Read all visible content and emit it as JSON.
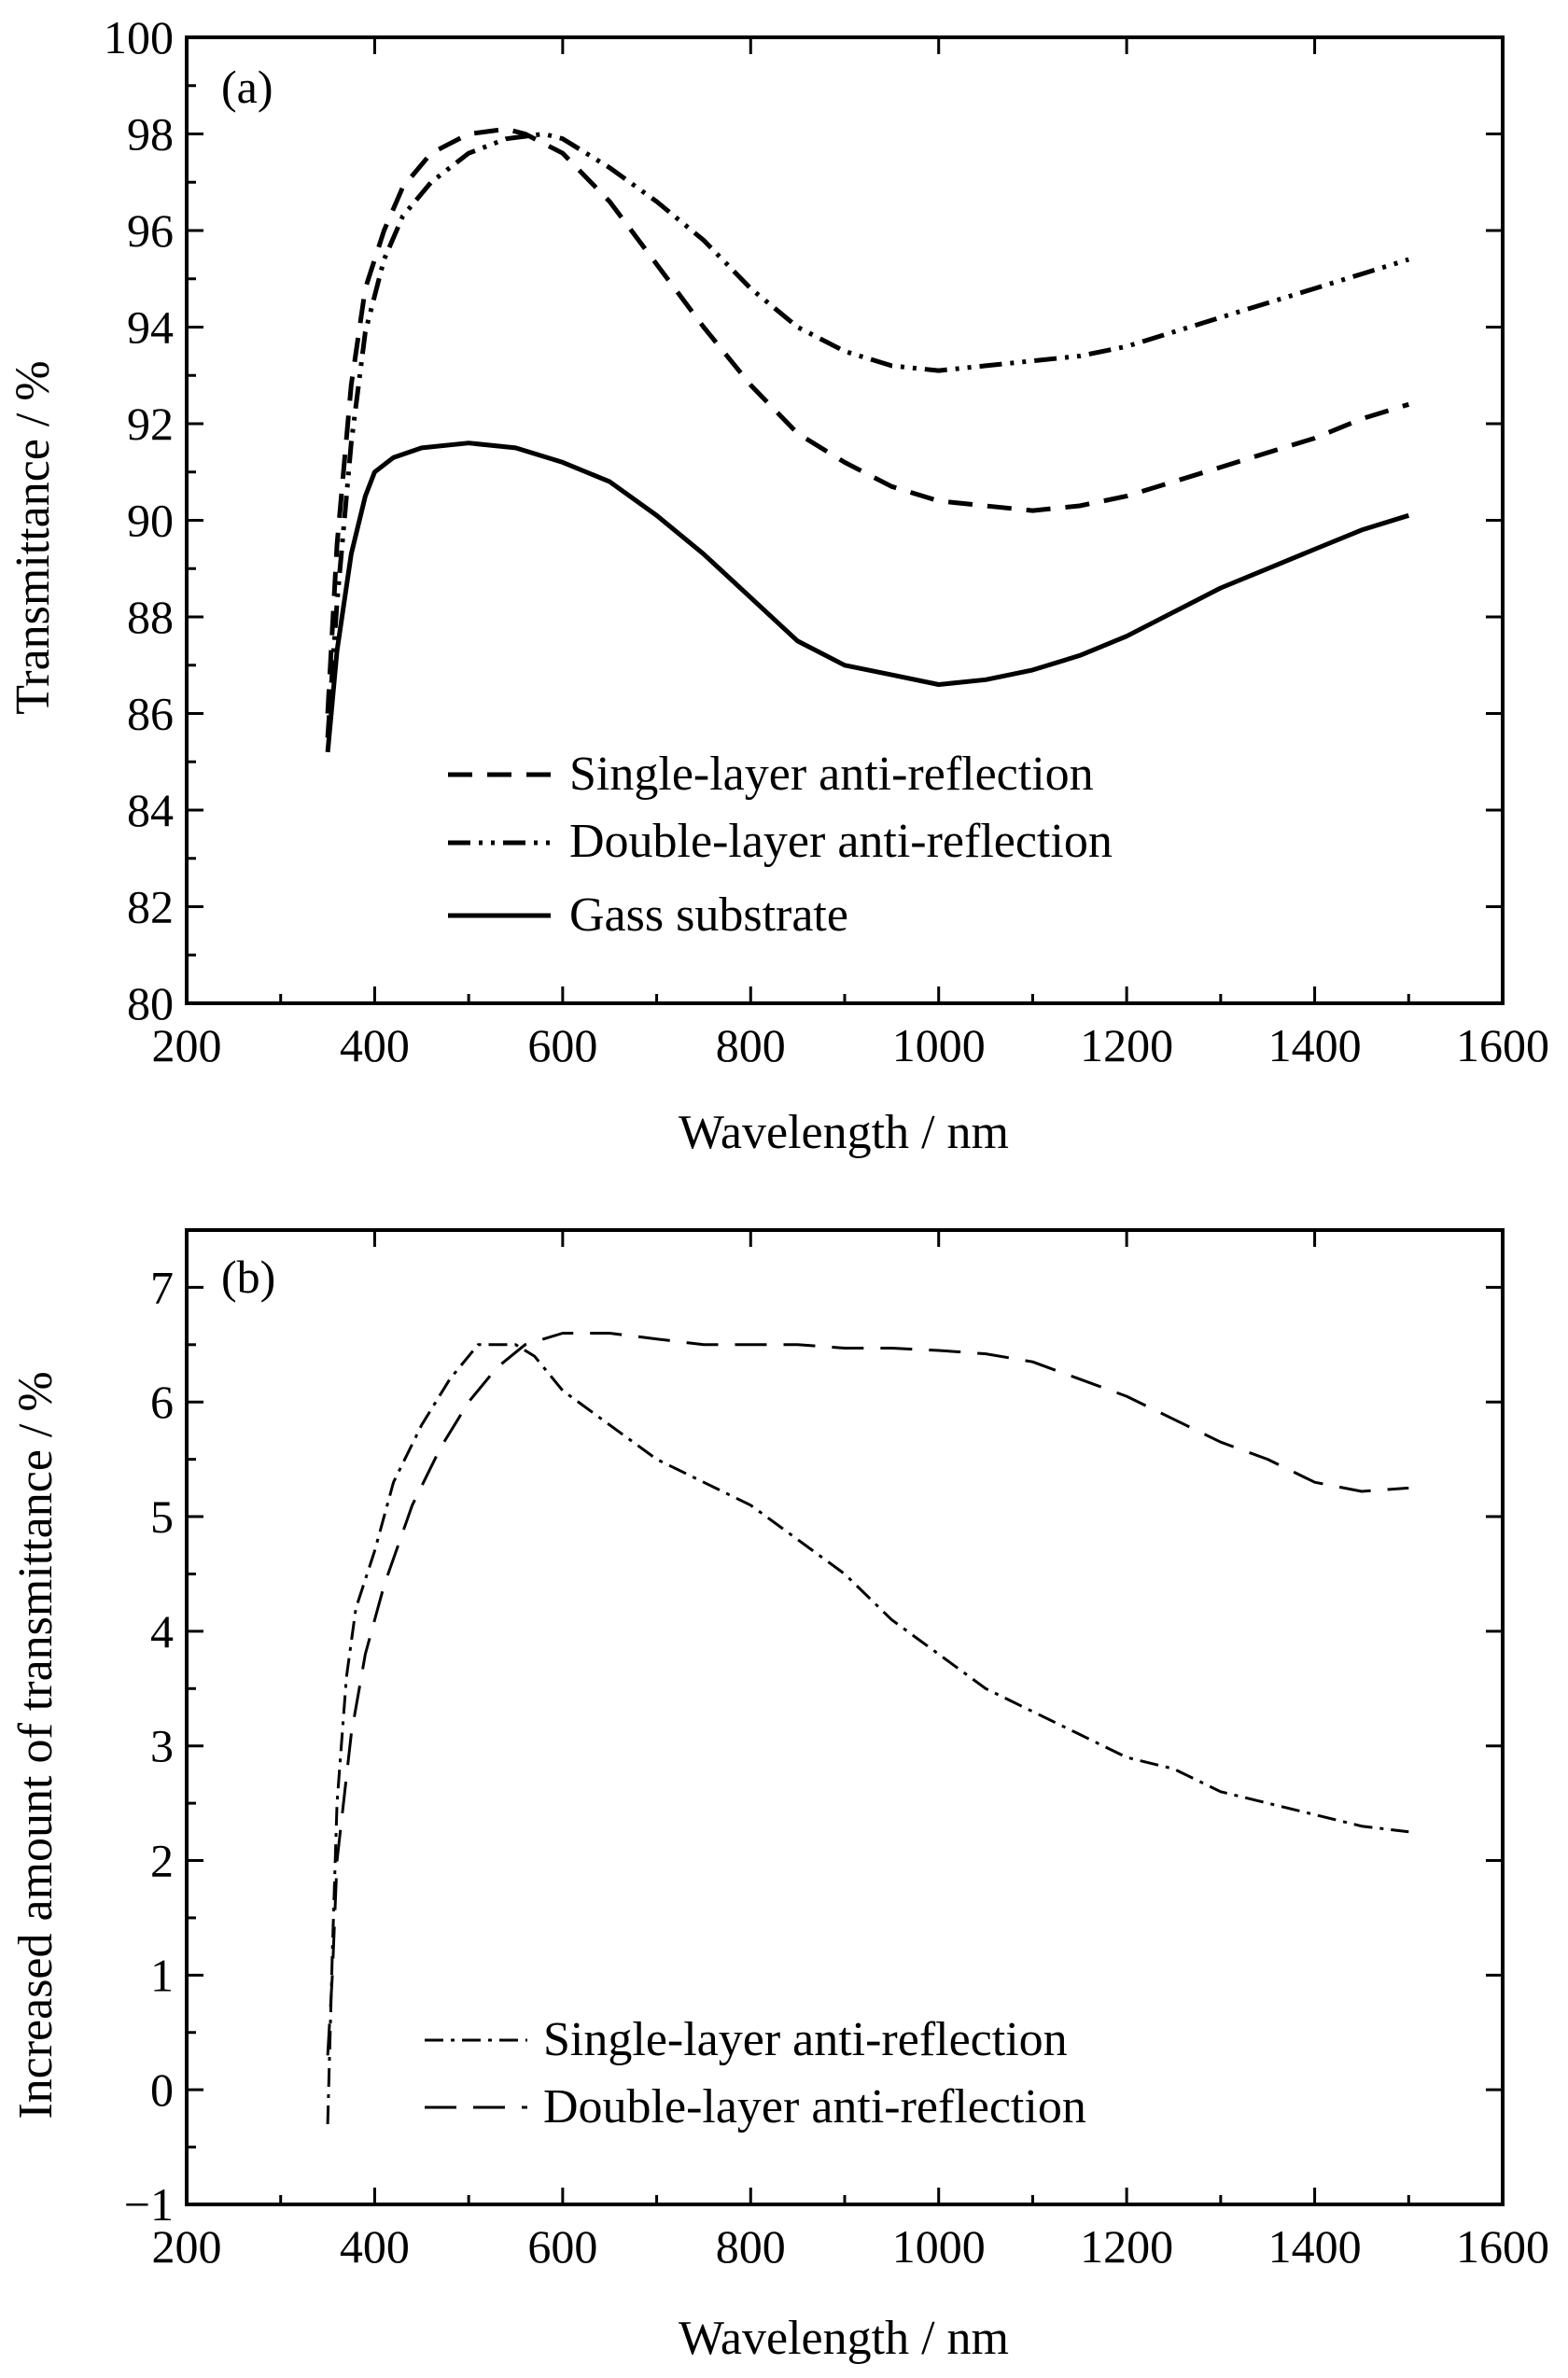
{
  "chart_data": [
    {
      "type": "line",
      "panel_label": "(a)",
      "xlabel": "Wavelength / nm",
      "ylabel": "Transmittance / %",
      "xlim": [
        200,
        1600
      ],
      "ylim": [
        80,
        100
      ],
      "xticks": [
        "200",
        "400",
        "600",
        "800",
        "1000",
        "1200",
        "1400",
        "1600"
      ],
      "yticks": [
        "80",
        "82",
        "84",
        "86",
        "88",
        "90",
        "92",
        "94",
        "96",
        "98",
        "100"
      ],
      "legend_position": "lower-center",
      "grid": false,
      "series": [
        {
          "name": "Single-layer anti-reflection",
          "style": "dash",
          "x": [
            350,
            360,
            375,
            390,
            410,
            430,
            460,
            500,
            540,
            560,
            600,
            650,
            700,
            750,
            800,
            850,
            900,
            950,
            1000,
            1050,
            1100,
            1150,
            1200,
            1250,
            1300,
            1350,
            1400,
            1450,
            1500
          ],
          "y": [
            86.0,
            89.5,
            92.8,
            94.8,
            96.0,
            96.9,
            97.6,
            98.0,
            98.1,
            98.0,
            97.6,
            96.6,
            95.3,
            94.0,
            92.8,
            91.8,
            91.2,
            90.7,
            90.4,
            90.3,
            90.2,
            90.3,
            90.5,
            90.8,
            91.1,
            91.4,
            91.7,
            92.1,
            92.4
          ]
        },
        {
          "name": "Double-layer anti-reflection",
          "style": "dash-dot-dot",
          "x": [
            350,
            360,
            375,
            390,
            410,
            430,
            460,
            500,
            540,
            580,
            600,
            650,
            700,
            750,
            800,
            850,
            900,
            950,
            1000,
            1050,
            1100,
            1150,
            1200,
            1250,
            1300,
            1350,
            1400,
            1450,
            1500
          ],
          "y": [
            85.5,
            88.3,
            91.6,
            93.9,
            95.4,
            96.3,
            97.0,
            97.6,
            97.9,
            98.0,
            97.9,
            97.3,
            96.6,
            95.8,
            94.8,
            94.0,
            93.5,
            93.2,
            93.1,
            93.2,
            93.3,
            93.4,
            93.6,
            93.9,
            94.2,
            94.5,
            94.8,
            95.1,
            95.4
          ]
        },
        {
          "name": "Gass substrate",
          "style": "solid",
          "x": [
            350,
            360,
            375,
            390,
            400,
            420,
            450,
            500,
            550,
            600,
            650,
            700,
            750,
            800,
            850,
            900,
            950,
            1000,
            1050,
            1100,
            1150,
            1200,
            1250,
            1300,
            1350,
            1400,
            1450,
            1500
          ],
          "y": [
            85.2,
            87.3,
            89.3,
            90.5,
            91.0,
            91.3,
            91.5,
            91.6,
            91.5,
            91.2,
            90.8,
            90.1,
            89.3,
            88.4,
            87.5,
            87.0,
            86.8,
            86.6,
            86.7,
            86.9,
            87.2,
            87.6,
            88.1,
            88.6,
            89.0,
            89.4,
            89.8,
            90.1
          ]
        }
      ]
    },
    {
      "type": "line",
      "panel_label": "(b)",
      "xlabel": "Wavelength / nm",
      "ylabel": "Increased amount of transmittance / %",
      "xlim": [
        200,
        1600
      ],
      "ylim": [
        -1,
        7.5
      ],
      "xticks": [
        "200",
        "400",
        "600",
        "800",
        "1000",
        "1200",
        "1400",
        "1600"
      ],
      "yticks": [
        "−1",
        "0",
        "1",
        "2",
        "3",
        "4",
        "5",
        "6",
        "7"
      ],
      "legend_position": "lower-center",
      "grid": false,
      "series": [
        {
          "name": "Single-layer anti-reflection",
          "style": "dash-dot",
          "x": [
            350,
            355,
            360,
            370,
            380,
            400,
            420,
            450,
            480,
            510,
            530,
            550,
            570,
            600,
            650,
            700,
            750,
            800,
            850,
            900,
            950,
            1000,
            1050,
            1100,
            1150,
            1200,
            1250,
            1300,
            1350,
            1400,
            1450,
            1500
          ],
          "y": [
            -0.3,
            1.2,
            2.5,
            3.6,
            4.2,
            4.7,
            5.3,
            5.8,
            6.2,
            6.5,
            6.5,
            6.5,
            6.4,
            6.1,
            5.8,
            5.5,
            5.3,
            5.1,
            4.8,
            4.5,
            4.1,
            3.8,
            3.5,
            3.3,
            3.1,
            2.9,
            2.8,
            2.6,
            2.5,
            2.4,
            2.3,
            2.25
          ]
        },
        {
          "name": "Double-layer anti-reflection",
          "style": "dash",
          "x": [
            350,
            355,
            360,
            375,
            390,
            410,
            440,
            470,
            500,
            530,
            560,
            600,
            650,
            700,
            750,
            800,
            850,
            900,
            950,
            1000,
            1050,
            1100,
            1150,
            1200,
            1250,
            1300,
            1350,
            1400,
            1450,
            1500
          ],
          "y": [
            0.3,
            1.0,
            2.0,
            3.1,
            3.8,
            4.4,
            5.1,
            5.6,
            6.0,
            6.3,
            6.5,
            6.6,
            6.6,
            6.55,
            6.5,
            6.5,
            6.5,
            6.47,
            6.47,
            6.45,
            6.42,
            6.35,
            6.2,
            6.05,
            5.85,
            5.65,
            5.5,
            5.3,
            5.22,
            5.25
          ]
        }
      ]
    }
  ]
}
